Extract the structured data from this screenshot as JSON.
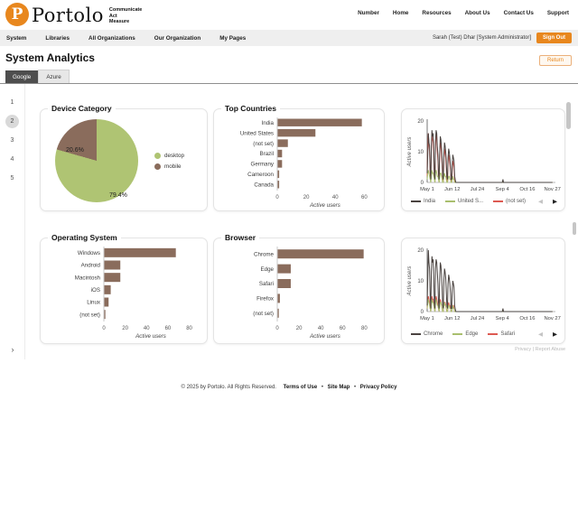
{
  "brand": {
    "logo_letter": "P",
    "name": "Portolo",
    "tagline": [
      "Communicate",
      "Act",
      "Measure"
    ]
  },
  "top_nav": [
    "Number",
    "Home",
    "Resources",
    "About Us",
    "Contact Us",
    "Support"
  ],
  "menu_bar": {
    "items": [
      "System",
      "Libraries",
      "All Organizations",
      "Our Organization",
      "My Pages"
    ],
    "user_label": "Sarah (Test) Dhar [System Administrator]",
    "sign_out_label": "Sign Out"
  },
  "page": {
    "title": "System Analytics",
    "return_label": "Return",
    "tabs": [
      {
        "label": "Google",
        "active": true
      },
      {
        "label": "Azure",
        "active": false
      }
    ]
  },
  "report": {
    "pager": {
      "pages": [
        "1",
        "2",
        "3",
        "4",
        "5"
      ],
      "current": "2",
      "next": "›"
    },
    "embed_note": "Privacy | Report Abuse",
    "legend_prev": "◀",
    "legend_next": "▶"
  },
  "colors": {
    "brand_orange": "#E8871E",
    "bar_brown": "#8A6C5C",
    "pie_green": "#AFC473",
    "line_dark": "#4A4340",
    "line_green": "#A9BF6E",
    "line_red": "#DD5A52"
  },
  "chart_data": [
    {
      "id": "device_category",
      "type": "pie",
      "title": "Device Category",
      "slices": [
        {
          "label": "desktop",
          "value": 79.4,
          "pct_label": "79.4%",
          "color": "#AFC473"
        },
        {
          "label": "mobile",
          "value": 20.6,
          "pct_label": "20.6%",
          "color": "#8A6C5C"
        }
      ]
    },
    {
      "id": "top_countries",
      "type": "bar",
      "title": "Top Countries",
      "categories": [
        "India",
        "United States",
        "(not set)",
        "Brazil",
        "Germany",
        "Cameroon",
        "Canada"
      ],
      "values": [
        58,
        26,
        7,
        3,
        3,
        1,
        1
      ],
      "xlabel": "Active users",
      "xticks": [
        0,
        20,
        40,
        60
      ],
      "xmax": 66
    },
    {
      "id": "countries_trend",
      "type": "line",
      "ylabel": "Active users",
      "yticks": [
        0,
        10,
        20
      ],
      "ylim": [
        0,
        20
      ],
      "xticks": [
        "May 1",
        "Jun 12",
        "Jul 24",
        "Sep 4",
        "Oct 16",
        "Nov 27"
      ],
      "xtick_days": [
        0,
        42,
        84,
        126,
        168,
        210
      ],
      "xmax_days": 215,
      "blip": {
        "day": 127,
        "value": 1
      },
      "series": [
        {
          "name": "India",
          "color": "#4A4340",
          "values": [
            3,
            10,
            16,
            13,
            12,
            4,
            1,
            12,
            17,
            15,
            16,
            10,
            3,
            1,
            13,
            17,
            16,
            12,
            9,
            3,
            1,
            10,
            15,
            14,
            11,
            8,
            2,
            1,
            9,
            13,
            12,
            10,
            7,
            2,
            1,
            8,
            11,
            10,
            8,
            5,
            1,
            1,
            6,
            9,
            8,
            7,
            2,
            1,
            0,
            0
          ]
        },
        {
          "name": "United S...",
          "color": "#A9BF6E",
          "values": [
            1,
            3,
            4,
            3,
            2,
            1,
            0,
            2,
            4,
            3,
            3,
            2,
            1,
            0,
            3,
            4,
            3,
            2,
            2,
            1,
            0,
            2,
            3,
            3,
            2,
            1,
            0,
            0,
            2,
            3,
            2,
            2,
            1,
            0,
            0,
            1,
            2,
            2,
            1,
            1,
            0,
            0,
            1,
            2,
            1,
            1,
            0,
            0,
            0,
            0
          ]
        },
        {
          "name": "(not set)",
          "color": "#DD5A52",
          "values": [
            2,
            14,
            16,
            12,
            10,
            3,
            1,
            11,
            16,
            14,
            13,
            8,
            2,
            0,
            12,
            16,
            14,
            10,
            7,
            2,
            0,
            9,
            13,
            12,
            9,
            6,
            1,
            0,
            8,
            11,
            10,
            8,
            5,
            1,
            0,
            6,
            9,
            8,
            6,
            4,
            1,
            0,
            4,
            7,
            6,
            5,
            1,
            0,
            0,
            0
          ]
        }
      ]
    },
    {
      "id": "operating_system",
      "type": "bar",
      "title": "Operating System",
      "categories": [
        "Windows",
        "Android",
        "Macintosh",
        "iOS",
        "Linux",
        "(not set)"
      ],
      "values": [
        67,
        15,
        15,
        6,
        4,
        1
      ],
      "xlabel": "Active users",
      "xticks": [
        0,
        20,
        40,
        60,
        80
      ],
      "xmax": 88
    },
    {
      "id": "browser",
      "type": "bar",
      "title": "Browser",
      "categories": [
        "Chrome",
        "Edge",
        "Safari",
        "Firefox",
        "(not set)"
      ],
      "values": [
        79,
        12,
        12,
        2,
        1
      ],
      "xlabel": "Active users",
      "xticks": [
        0,
        20,
        40,
        60,
        80
      ],
      "xmax": 88
    },
    {
      "id": "browser_trend",
      "type": "line",
      "ylabel": "Active users",
      "yticks": [
        0,
        10,
        20
      ],
      "ylim": [
        0,
        20
      ],
      "xticks": [
        "May 1",
        "Jun 12",
        "Jul 24",
        "Sep 4",
        "Oct 16",
        "Nov 27"
      ],
      "xtick_days": [
        0,
        42,
        84,
        126,
        168,
        210
      ],
      "xmax_days": 215,
      "blip": {
        "day": 127,
        "value": 1
      },
      "series": [
        {
          "name": "Chrome",
          "color": "#4A4340",
          "values": [
            2,
            12,
            20,
            16,
            14,
            5,
            1,
            13,
            18,
            16,
            17,
            11,
            3,
            1,
            14,
            17,
            16,
            13,
            9,
            3,
            1,
            11,
            16,
            15,
            12,
            8,
            2,
            1,
            10,
            14,
            13,
            11,
            7,
            2,
            1,
            9,
            12,
            11,
            9,
            6,
            1,
            1,
            7,
            10,
            9,
            8,
            2,
            1,
            0,
            0
          ]
        },
        {
          "name": "Edge",
          "color": "#A9BF6E",
          "values": [
            1,
            3,
            4,
            3,
            2,
            1,
            0,
            2,
            4,
            3,
            3,
            2,
            1,
            0,
            3,
            4,
            3,
            2,
            2,
            1,
            0,
            2,
            3,
            3,
            2,
            1,
            0,
            0,
            2,
            3,
            2,
            2,
            1,
            0,
            0,
            1,
            2,
            2,
            1,
            1,
            0,
            0,
            1,
            2,
            1,
            1,
            0,
            0,
            0,
            0
          ]
        },
        {
          "name": "Safari",
          "color": "#DD5A52",
          "values": [
            1,
            4,
            5,
            4,
            3,
            1,
            0,
            3,
            5,
            4,
            4,
            2,
            1,
            0,
            3,
            5,
            4,
            3,
            2,
            1,
            0,
            3,
            4,
            3,
            2,
            1,
            0,
            0,
            2,
            3,
            3,
            2,
            1,
            0,
            0,
            2,
            3,
            2,
            2,
            1,
            0,
            0,
            1,
            2,
            2,
            1,
            0,
            0,
            0,
            0
          ]
        }
      ]
    }
  ],
  "footer": {
    "copyright": "© 2025 by Portolo. All Rights Reserved.",
    "links": [
      "Terms of Use",
      "Site Map",
      "Privacy Policy"
    ],
    "separator": "•"
  }
}
